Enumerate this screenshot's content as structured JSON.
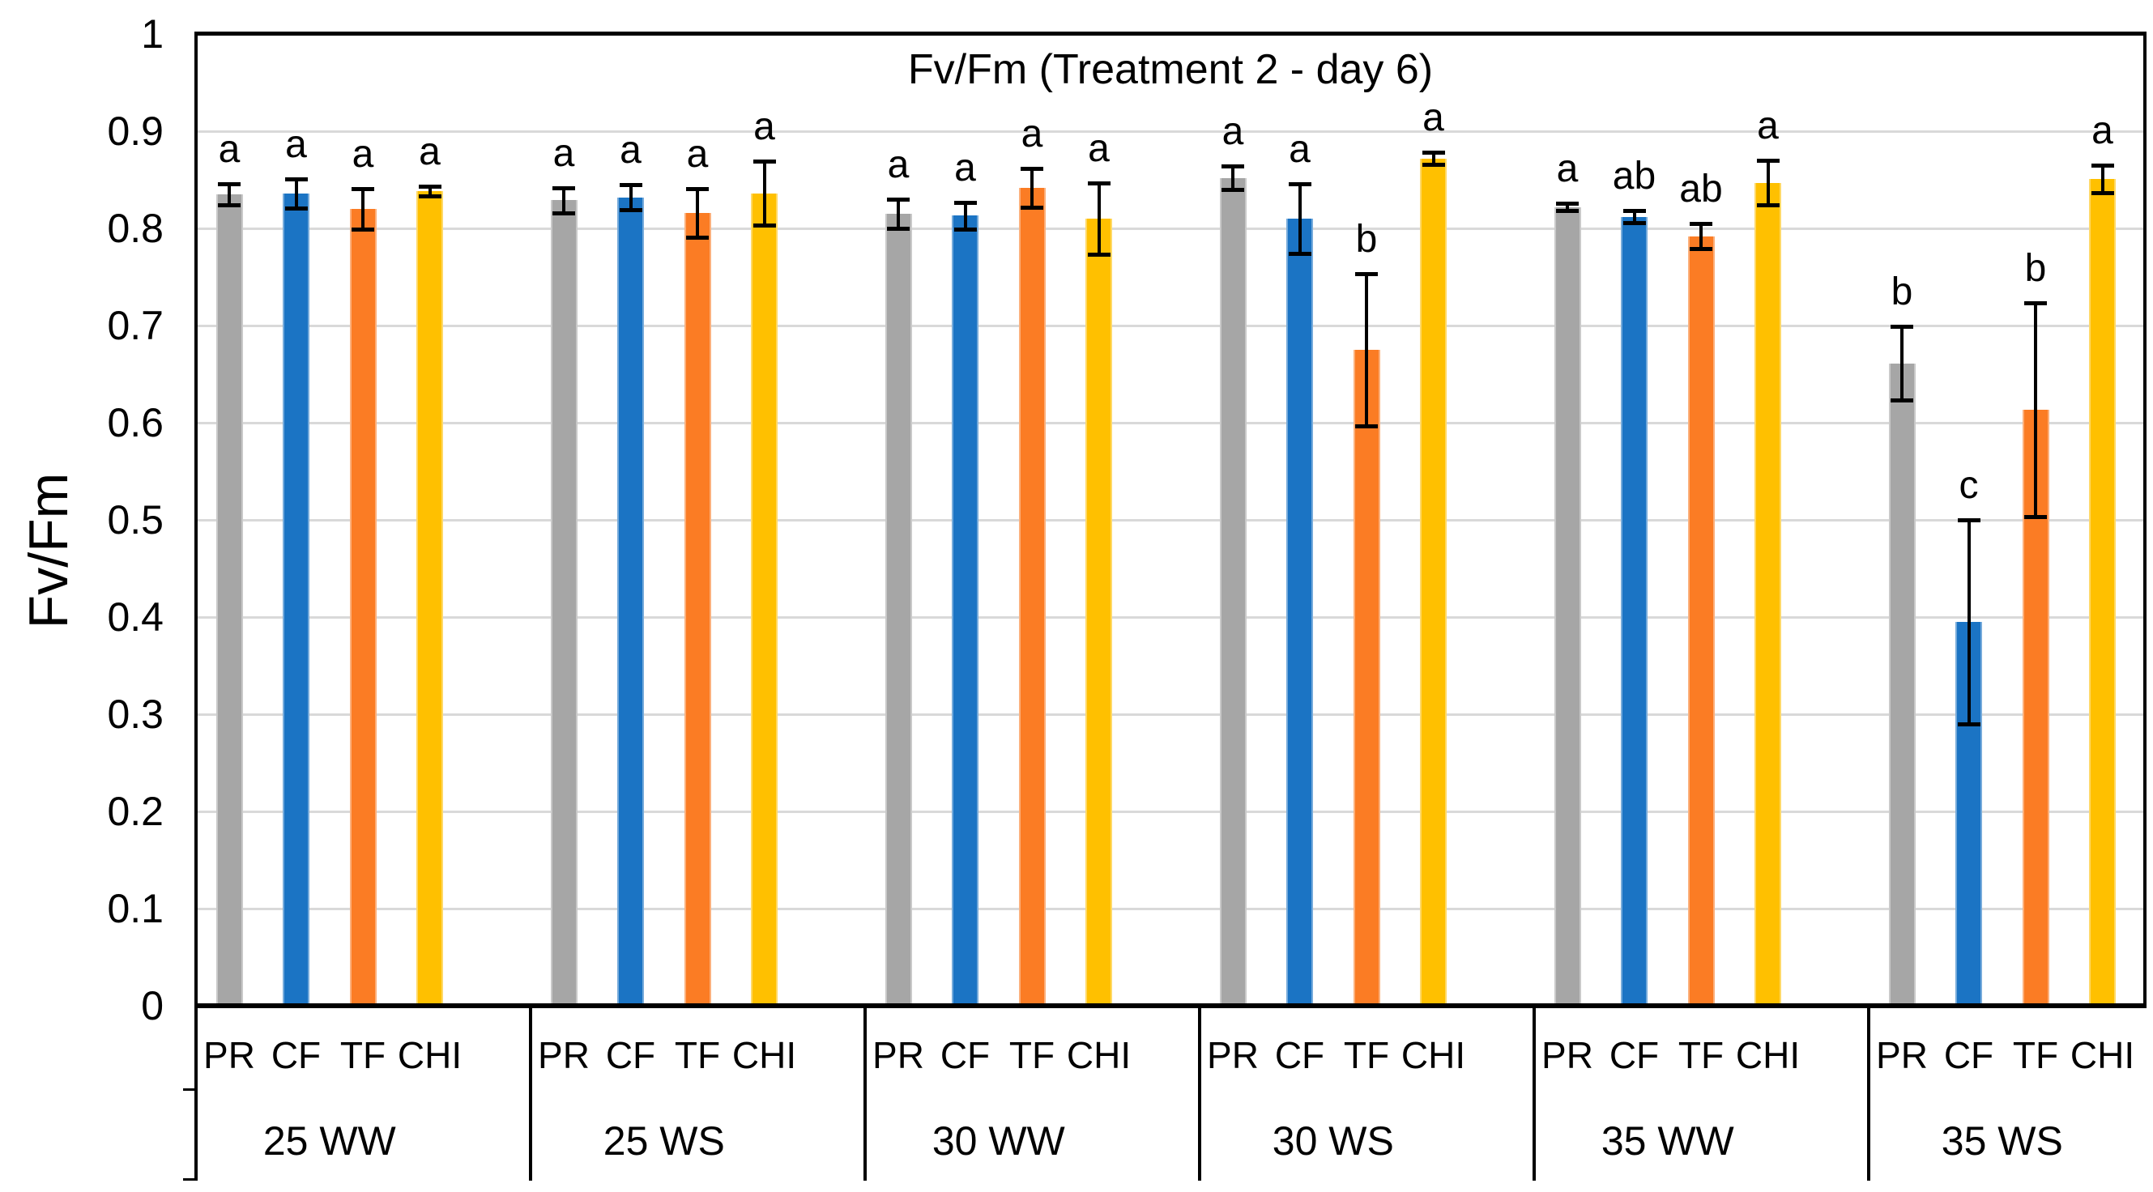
{
  "chart_data": {
    "type": "bar",
    "title": "Fv/Fm (Treatment 2 - day 6)",
    "ylabel": "Fv/Fm",
    "ylim": [
      0,
      1
    ],
    "yticks": [
      "1",
      "0.9",
      "0.8",
      "0.7",
      "0.6",
      "0.5",
      "0.4",
      "0.3",
      "0.2",
      "0.1",
      "0"
    ],
    "grid": true,
    "gridline_color": "#D9D9D9",
    "error_bar_color": "#000000",
    "legend": "none",
    "categories": [
      "25 WW",
      "25 WS",
      "30 WW",
      "30 WS",
      "35 WW",
      "35 WS"
    ],
    "sub_categories": [
      "PR",
      "CF",
      "TF",
      "CHI"
    ],
    "series": [
      {
        "name": "PR",
        "color": "#A6A6A6",
        "values": [
          0.835,
          0.829,
          0.815,
          0.852,
          0.822,
          0.661
        ],
        "errors": [
          0.011,
          0.013,
          0.015,
          0.012,
          0.004,
          0.038
        ],
        "letters": [
          "a",
          "a",
          "a",
          "a",
          "a",
          "b"
        ]
      },
      {
        "name": "CF",
        "color": "#1B74C4",
        "values": [
          0.836,
          0.832,
          0.813,
          0.81,
          0.812,
          0.395
        ],
        "errors": [
          0.015,
          0.013,
          0.014,
          0.036,
          0.006,
          0.105
        ],
        "letters": [
          "a",
          "a",
          "a",
          "a",
          "ab",
          "c"
        ]
      },
      {
        "name": "TF",
        "color": "#FB7C24",
        "values": [
          0.82,
          0.816,
          0.842,
          0.675,
          0.792,
          0.613
        ],
        "errors": [
          0.021,
          0.025,
          0.02,
          0.078,
          0.013,
          0.11
        ],
        "letters": [
          "a",
          "a",
          "a",
          "b",
          "ab",
          "b"
        ]
      },
      {
        "name": "CHI",
        "color": "#FFC000",
        "values": [
          0.838,
          0.836,
          0.81,
          0.872,
          0.847,
          0.851
        ],
        "errors": [
          0.005,
          0.033,
          0.037,
          0.006,
          0.023,
          0.014
        ],
        "letters": [
          "a",
          "a",
          "a",
          "a",
          "a",
          "a"
        ]
      }
    ]
  }
}
